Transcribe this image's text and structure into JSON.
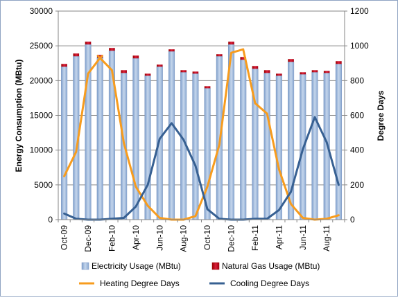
{
  "chart_data": {
    "type": "bar",
    "ylabel": "Energy Consumption (MBtu)",
    "y2label": "Degree Days",
    "ylim": [
      0,
      30000
    ],
    "y2lim": [
      0,
      1200
    ],
    "yticks": [
      "0",
      "5000",
      "10000",
      "15000",
      "20000",
      "25000",
      "30000"
    ],
    "y2ticks": [
      "0",
      "200",
      "400",
      "600",
      "800",
      "1000",
      "1200"
    ],
    "categories": [
      "Oct-09",
      "Nov-09",
      "Dec-09",
      "Jan-10",
      "Feb-10",
      "Mar-10",
      "Apr-10",
      "May-10",
      "Jun-10",
      "Jul-10",
      "Aug-10",
      "Sep-10",
      "Oct-10",
      "Nov-10",
      "Dec-10",
      "Jan-11",
      "Feb-11",
      "Mar-11",
      "Apr-11",
      "May-11",
      "Jun-11",
      "Jul-11",
      "Aug-11",
      "Sep-11"
    ],
    "shown_tick_labels": [
      "Oct-09",
      "Dec-09",
      "Feb-10",
      "Apr-10",
      "Jun-10",
      "Aug-10",
      "Oct-10",
      "Dec-10",
      "Feb-11",
      "Apr-11",
      "Jun-11",
      "Aug-11"
    ],
    "grid": true,
    "legend_position": "bottom",
    "series": [
      {
        "name": "Electricity Usage (MBtu)",
        "type": "bar-stacked",
        "axis": "left",
        "color": "#95B3D7",
        "values": [
          22000,
          23500,
          25200,
          23300,
          24300,
          21100,
          23200,
          20700,
          22000,
          24200,
          21200,
          21000,
          18900,
          23500,
          25200,
          23000,
          21700,
          21100,
          20700,
          22700,
          20900,
          21200,
          21100,
          22400
        ]
      },
      {
        "name": "Natural Gas Usage (MBtu)",
        "type": "bar-stacked",
        "axis": "left",
        "color": "#C00000",
        "values": [
          400,
          400,
          400,
          400,
          400,
          400,
          400,
          300,
          300,
          300,
          300,
          300,
          300,
          300,
          400,
          400,
          400,
          400,
          300,
          400,
          300,
          300,
          300,
          400
        ]
      },
      {
        "name": "Heating Degree Days",
        "type": "line",
        "axis": "right",
        "color": "#F79C1E",
        "values": [
          250,
          390,
          840,
          930,
          860,
          440,
          190,
          80,
          10,
          0,
          0,
          20,
          190,
          430,
          960,
          980,
          670,
          610,
          290,
          90,
          10,
          0,
          5,
          25
        ]
      },
      {
        "name": "Cooling Degree Days",
        "type": "line",
        "axis": "right",
        "color": "#376092",
        "values": [
          35,
          5,
          0,
          0,
          5,
          10,
          75,
          200,
          465,
          555,
          460,
          310,
          60,
          5,
          0,
          0,
          5,
          5,
          55,
          160,
          405,
          590,
          445,
          200
        ]
      }
    ]
  }
}
